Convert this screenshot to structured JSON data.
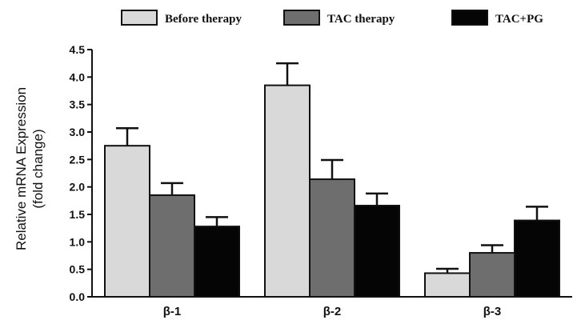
{
  "chart_data": {
    "type": "bar",
    "title": "",
    "xlabel": "",
    "ylabel": [
      "Relative mRNA Expression",
      "(fold change)"
    ],
    "ylim": [
      0,
      4.5
    ],
    "yticks": [
      "0.0",
      "0.5",
      "1.0",
      "1.5",
      "2.0",
      "2.5",
      "3.0",
      "3.5",
      "4.0",
      "4.5"
    ],
    "categories": [
      "β-1",
      "β-2",
      "β-3"
    ],
    "grid": false,
    "legend_position": "top",
    "series": [
      {
        "name": "Before therapy",
        "color": "#d9d9d9",
        "values": [
          2.75,
          3.85,
          0.43
        ],
        "errors": [
          0.32,
          0.4,
          0.08
        ]
      },
      {
        "name": "TAC therapy",
        "color": "#6e6e6e",
        "values": [
          1.85,
          2.14,
          0.8
        ],
        "errors": [
          0.22,
          0.35,
          0.14
        ]
      },
      {
        "name": "TAC+PG",
        "color": "#050505",
        "values": [
          1.28,
          1.66,
          1.39
        ],
        "errors": [
          0.17,
          0.22,
          0.25
        ]
      }
    ]
  }
}
